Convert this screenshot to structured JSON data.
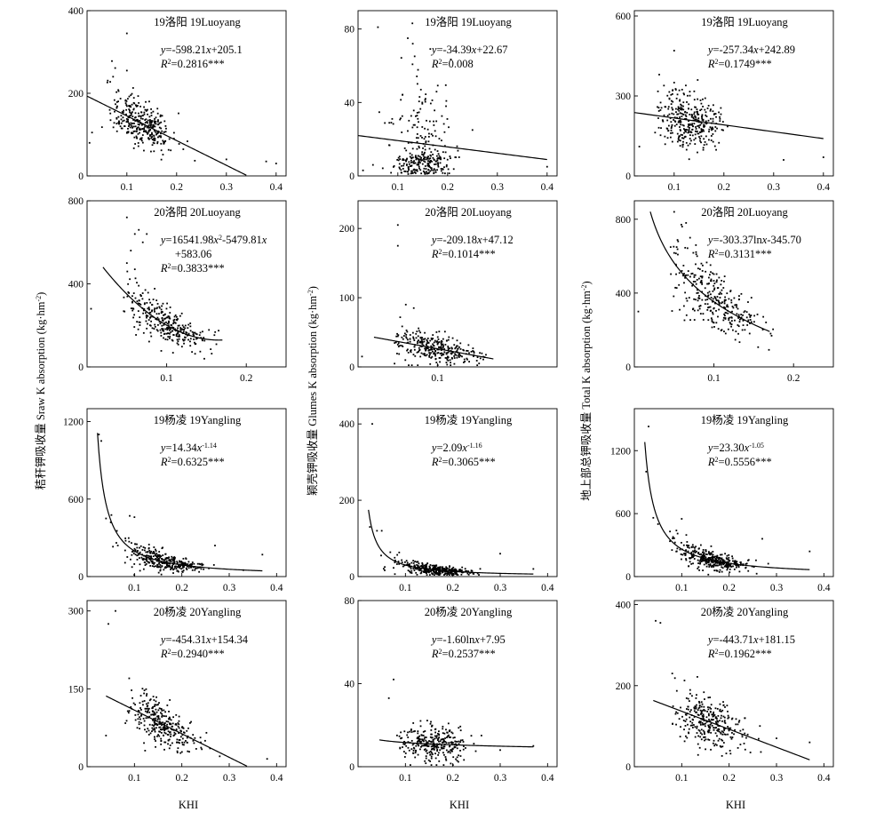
{
  "chart_data": [
    {
      "id": "p00",
      "type": "scatter",
      "title": "19洛阳 19Luoyang",
      "model": "linear",
      "a": -598.21,
      "b": 205.1,
      "eq1": "y=-598.21x+205.1",
      "r2": "R2=0.2816***",
      "xlim": [
        0.02,
        0.42
      ],
      "ylim": [
        0,
        400
      ],
      "yticks": [
        0,
        200,
        400
      ],
      "xticks": [
        0.1,
        0.2,
        0.3,
        0.4
      ],
      "xrange": [
        0.02,
        0.36
      ],
      "cloud": {
        "n": 330,
        "cx": 0.13,
        "sx": 0.03,
        "seed": 11,
        "noise": 0.22
      },
      "extra": [
        [
          0.1,
          345
        ],
        [
          0.07,
          278
        ],
        [
          0.1,
          255
        ],
        [
          0.03,
          105
        ],
        [
          0.025,
          80
        ],
        [
          0.05,
          118
        ],
        [
          0.4,
          30
        ],
        [
          0.38,
          35
        ],
        [
          0.3,
          40
        ]
      ]
    },
    {
      "id": "p01",
      "type": "scatter",
      "title": "19洛阳 19Luoyang",
      "model": "linear",
      "a": -34.39,
      "b": 22.67,
      "eq1": "y=-34.39x+22.67",
      "r2": "R2=0.008",
      "xlim": [
        0.02,
        0.42
      ],
      "ylim": [
        0,
        90
      ],
      "yticks": [
        0,
        40,
        80
      ],
      "xticks": [
        0.1,
        0.2,
        0.3,
        0.4
      ],
      "xrange": [
        0.02,
        0.4
      ],
      "cloud": {
        "n": 320,
        "cx": 0.15,
        "sx": 0.03,
        "seed": 23,
        "noise": 1.0,
        "bimodal": true
      },
      "extra": [
        [
          0.06,
          81
        ],
        [
          0.12,
          75
        ],
        [
          0.13,
          72
        ],
        [
          0.25,
          25
        ],
        [
          0.4,
          5
        ],
        [
          0.03,
          3
        ],
        [
          0.05,
          6
        ]
      ]
    },
    {
      "id": "p02",
      "type": "scatter",
      "title": "19洛阳 19Luoyang",
      "model": "linear",
      "a": -257.34,
      "b": 242.89,
      "eq1": "y=-257.34x+242.89",
      "r2": "R2=0.1749***",
      "xlim": [
        0.02,
        0.42
      ],
      "ylim": [
        0,
        620
      ],
      "yticks": [
        0,
        300,
        600
      ],
      "xticks": [
        0.1,
        0.2,
        0.3,
        0.4
      ],
      "xrange": [
        0.02,
        0.4
      ],
      "cloud": {
        "n": 330,
        "cx": 0.13,
        "sx": 0.03,
        "seed": 37,
        "noise": 0.25
      },
      "extra": [
        [
          0.1,
          470
        ],
        [
          0.07,
          380
        ],
        [
          0.1,
          350
        ],
        [
          0.03,
          110
        ],
        [
          0.4,
          70
        ],
        [
          0.32,
          60
        ]
      ]
    },
    {
      "id": "p10",
      "type": "scatter",
      "title": "20洛阳 20Luoyang",
      "model": "quad",
      "a": 16541.98,
      "b": -5479.81,
      "c": 583.06,
      "eq1": "y=16541.98x2-5479.81x",
      "eq2": "+583.06",
      "r2": "R2=0.3833***",
      "xlim": [
        0,
        0.25
      ],
      "ylim": [
        0,
        800
      ],
      "yticks": [
        0,
        400,
        800
      ],
      "xticks": [
        0.1,
        0.2
      ],
      "xrange": [
        0.02,
        0.17
      ],
      "cloud": {
        "n": 300,
        "cx": 0.1,
        "sx": 0.028,
        "seed": 41,
        "noise": 0.22,
        "xmin": 0.045,
        "xmax": 0.175
      },
      "extra": [
        [
          0.05,
          720
        ],
        [
          0.06,
          640
        ],
        [
          0.065,
          660
        ],
        [
          0.07,
          600
        ],
        [
          0.075,
          640
        ],
        [
          0.055,
          560
        ],
        [
          0.06,
          470
        ],
        [
          0.005,
          280
        ],
        [
          0.05,
          500
        ]
      ]
    },
    {
      "id": "p11",
      "type": "scatter",
      "title": "20洛阳 20Luoyang",
      "model": "linear",
      "a": -209.18,
      "b": 47.12,
      "eq1": "y=-209.18x+47.12",
      "r2": "R2=0.1014***",
      "xlim": [
        0,
        0.25
      ],
      "ylim": [
        0,
        240
      ],
      "yticks": [
        0,
        100,
        200
      ],
      "xticks": [
        0.1
      ],
      "xrange": [
        0.02,
        0.17
      ],
      "cloud": {
        "n": 300,
        "cx": 0.1,
        "sx": 0.028,
        "seed": 53,
        "noise": 0.4,
        "xmin": 0.045,
        "xmax": 0.175
      },
      "extra": [
        [
          0.05,
          205
        ],
        [
          0.05,
          175
        ],
        [
          0.06,
          90
        ],
        [
          0.07,
          85
        ],
        [
          0.005,
          15
        ]
      ]
    },
    {
      "id": "p12",
      "type": "scatter",
      "title": "20洛阳 20Luoyang",
      "model": "log",
      "a": -303.37,
      "b": -345.7,
      "eq1": "y=-303.37lnx-345.70",
      "r2": "R2=0.3131***",
      "xlim": [
        0,
        0.25
      ],
      "ylim": [
        0,
        900
      ],
      "yticks": [
        0,
        400,
        800
      ],
      "xticks": [
        0.1,
        0.2
      ],
      "xrange": [
        0.02,
        0.17
      ],
      "cloud": {
        "n": 300,
        "cx": 0.1,
        "sx": 0.028,
        "seed": 67,
        "noise": 0.22,
        "xmin": 0.045,
        "xmax": 0.175
      },
      "extra": [
        [
          0.05,
          840
        ],
        [
          0.06,
          760
        ],
        [
          0.065,
          780
        ],
        [
          0.07,
          700
        ],
        [
          0.055,
          680
        ],
        [
          0.005,
          300
        ]
      ]
    },
    {
      "id": "p20",
      "type": "scatter",
      "title": "19杨凌 19Yangling",
      "model": "power",
      "a": 14.34,
      "b": -1.14,
      "eq1": "y=14.34x",
      "sup": "-1.14",
      "r2": "R2=0.6325***",
      "xlim": [
        0,
        0.42
      ],
      "ylim": [
        0,
        1300
      ],
      "yticks": [
        0,
        600,
        1200
      ],
      "xticks": [
        0.1,
        0.2,
        0.3,
        0.4
      ],
      "xrange": [
        0.022,
        0.37
      ],
      "cloud": {
        "n": 330,
        "cx": 0.16,
        "sx": 0.04,
        "seed": 79,
        "noise": 0.3,
        "xmin": 0.04,
        "xmax": 0.3
      },
      "extra": [
        [
          0.025,
          1100
        ],
        [
          0.03,
          1050
        ],
        [
          0.04,
          450
        ],
        [
          0.05,
          420
        ],
        [
          0.1,
          460
        ],
        [
          0.09,
          470
        ],
        [
          0.27,
          240
        ],
        [
          0.37,
          170
        ],
        [
          0.33,
          50
        ]
      ]
    },
    {
      "id": "p21",
      "type": "scatter",
      "title": "19杨凌 19Yangling",
      "model": "power",
      "a": 2.09,
      "b": -1.16,
      "eq1": "y=2.09x",
      "sup": "-1.16",
      "r2": "R2=0.3065***",
      "xlim": [
        0,
        0.42
      ],
      "ylim": [
        0,
        440
      ],
      "yticks": [
        0,
        200,
        400
      ],
      "xticks": [
        0.1,
        0.2,
        0.3,
        0.4
      ],
      "xrange": [
        0.022,
        0.37
      ],
      "cloud": {
        "n": 330,
        "cx": 0.16,
        "sx": 0.04,
        "seed": 83,
        "noise": 0.4,
        "xmin": 0.04,
        "xmax": 0.3
      },
      "extra": [
        [
          0.03,
          400
        ],
        [
          0.025,
          130
        ],
        [
          0.04,
          120
        ],
        [
          0.05,
          120
        ],
        [
          0.3,
          60
        ],
        [
          0.37,
          20
        ]
      ]
    },
    {
      "id": "p22",
      "type": "scatter",
      "title": "19杨凌 19Yangling",
      "model": "power",
      "a": 23.3,
      "b": -1.05,
      "eq1": "y=23.30x",
      "sup": "-1.05",
      "r2": "R2=0.5556***",
      "xlim": [
        0,
        0.42
      ],
      "ylim": [
        0,
        1600
      ],
      "yticks": [
        0,
        600,
        1200
      ],
      "xticks": [
        0.1,
        0.2,
        0.3,
        0.4
      ],
      "xrange": [
        0.022,
        0.37
      ],
      "cloud": {
        "n": 330,
        "cx": 0.16,
        "sx": 0.04,
        "seed": 97,
        "noise": 0.3,
        "xmin": 0.04,
        "xmax": 0.3
      },
      "extra": [
        [
          0.03,
          1430
        ],
        [
          0.025,
          1000
        ],
        [
          0.04,
          560
        ],
        [
          0.05,
          500
        ],
        [
          0.1,
          550
        ],
        [
          0.27,
          360
        ],
        [
          0.37,
          240
        ]
      ]
    },
    {
      "id": "p30",
      "type": "scatter",
      "title": "20杨凌 20Yangling",
      "model": "linear",
      "a": -454.31,
      "b": 154.34,
      "eq1": "y=-454.31x+154.34",
      "r2": "R2=0.2940***",
      "xlim": [
        0,
        0.42
      ],
      "ylim": [
        0,
        320
      ],
      "yticks": [
        0,
        150,
        300
      ],
      "xticks": [
        0.1,
        0.2,
        0.3,
        0.4
      ],
      "xrange": [
        0.04,
        0.34
      ],
      "cloud": {
        "n": 300,
        "cx": 0.16,
        "sx": 0.035,
        "seed": 101,
        "noise": 0.25,
        "xmin": 0.08,
        "xmax": 0.28
      },
      "extra": [
        [
          0.045,
          275
        ],
        [
          0.06,
          300
        ],
        [
          0.04,
          60
        ],
        [
          0.38,
          15
        ],
        [
          0.28,
          20
        ]
      ]
    },
    {
      "id": "p31",
      "type": "scatter",
      "title": "20杨凌 20Yangling",
      "model": "log",
      "a": -1.6,
      "b": 7.95,
      "eq1": "y=-1.60lnx+7.95",
      "r2": "R2=0.2537***",
      "xlim": [
        0,
        0.42
      ],
      "ylim": [
        0,
        80
      ],
      "yticks": [
        0,
        40,
        80
      ],
      "xticks": [
        0.1,
        0.2,
        0.3,
        0.4
      ],
      "xrange": [
        0.045,
        0.37
      ],
      "cloud": {
        "n": 300,
        "cx": 0.16,
        "sx": 0.035,
        "seed": 113,
        "noise": 0.4,
        "xmin": 0.08,
        "xmax": 0.28
      },
      "extra": [
        [
          0.075,
          42
        ],
        [
          0.065,
          33
        ],
        [
          0.37,
          10
        ],
        [
          0.3,
          8
        ]
      ]
    },
    {
      "id": "p32",
      "type": "scatter",
      "title": "20杨凌 20Yangling",
      "model": "linear",
      "a": -443.71,
      "b": 181.15,
      "eq1": "y=-443.71x+181.15",
      "r2": "R2=0.1962***",
      "xlim": [
        0,
        0.42
      ],
      "ylim": [
        0,
        410
      ],
      "yticks": [
        0,
        200,
        400
      ],
      "xticks": [
        0.1,
        0.2,
        0.3,
        0.4
      ],
      "xrange": [
        0.04,
        0.37
      ],
      "cloud": {
        "n": 300,
        "cx": 0.16,
        "sx": 0.035,
        "seed": 127,
        "noise": 0.3,
        "xmin": 0.08,
        "xmax": 0.28
      },
      "extra": [
        [
          0.045,
          360
        ],
        [
          0.055,
          355
        ],
        [
          0.08,
          230
        ],
        [
          0.37,
          60
        ],
        [
          0.3,
          70
        ]
      ]
    }
  ],
  "ylabels": [
    "秸秆钾吸收量 Sraw K absorption (kg·hm-2)",
    "颖壳钾吸收量 Glumes K absorption (kg·hm-2)",
    "地上部总钾吸收量 Total K absorption (kg·hm-2)"
  ],
  "xlabel": "KHI"
}
